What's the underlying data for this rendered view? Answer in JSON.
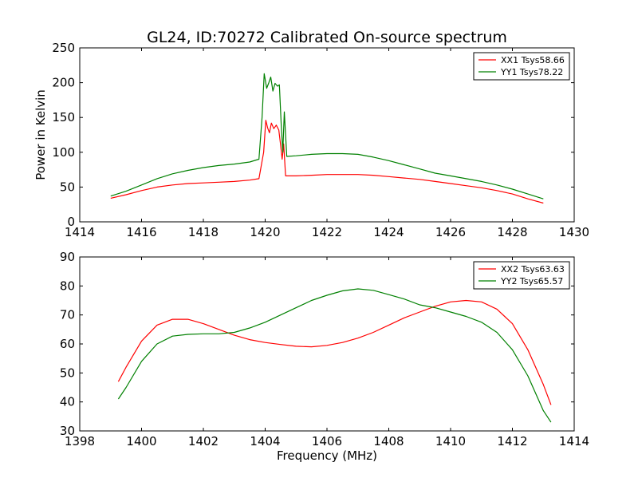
{
  "figure": {
    "title": "GL24, ID:70272 Calibrated On-source spectrum",
    "xlabel": "Frequency (MHz)",
    "ylabel": "Power in Kelvin"
  },
  "chart_data": [
    {
      "type": "line",
      "title": "GL24, ID:70272 Calibrated On-source spectrum",
      "xlabel": "",
      "ylabel": "Power in Kelvin",
      "xlim": [
        1414,
        1430
      ],
      "ylim": [
        0,
        250
      ],
      "xticks": [
        1414,
        1416,
        1418,
        1420,
        1422,
        1424,
        1426,
        1428,
        1430
      ],
      "yticks": [
        0,
        50,
        100,
        150,
        200,
        250
      ],
      "grid": false,
      "legend_position": "top-right",
      "series": [
        {
          "name": "XX1 Tsys58.66",
          "color": "#ff0000",
          "points": [
            [
              1415,
              34
            ],
            [
              1415.5,
              39
            ],
            [
              1416,
              45
            ],
            [
              1416.5,
              50
            ],
            [
              1417,
              53
            ],
            [
              1417.5,
              55
            ],
            [
              1418,
              56
            ],
            [
              1418.5,
              57
            ],
            [
              1419,
              58
            ],
            [
              1419.5,
              60
            ],
            [
              1419.8,
              62
            ],
            [
              1419.95,
              100
            ],
            [
              1420.02,
              146
            ],
            [
              1420.08,
              135
            ],
            [
              1420.14,
              128
            ],
            [
              1420.2,
              142
            ],
            [
              1420.28,
              134
            ],
            [
              1420.36,
              139
            ],
            [
              1420.44,
              132
            ],
            [
              1420.5,
              110
            ],
            [
              1420.55,
              90
            ],
            [
              1420.6,
              112
            ],
            [
              1420.66,
              66
            ],
            [
              1420.8,
              66
            ],
            [
              1421,
              66
            ],
            [
              1421.5,
              67
            ],
            [
              1422,
              68
            ],
            [
              1422.5,
              68
            ],
            [
              1423,
              68
            ],
            [
              1423.5,
              67
            ],
            [
              1424,
              65
            ],
            [
              1424.5,
              63
            ],
            [
              1425,
              61
            ],
            [
              1425.5,
              58
            ],
            [
              1426,
              55
            ],
            [
              1426.5,
              52
            ],
            [
              1427,
              49
            ],
            [
              1427.5,
              45
            ],
            [
              1428,
              40
            ],
            [
              1428.5,
              33
            ],
            [
              1429,
              27
            ]
          ]
        },
        {
          "name": "YY1 Tsys78.22",
          "color": "#008000",
          "points": [
            [
              1415,
              37
            ],
            [
              1415.5,
              44
            ],
            [
              1416,
              53
            ],
            [
              1416.5,
              62
            ],
            [
              1417,
              69
            ],
            [
              1417.5,
              74
            ],
            [
              1418,
              78
            ],
            [
              1418.5,
              81
            ],
            [
              1419,
              83
            ],
            [
              1419.5,
              86
            ],
            [
              1419.8,
              90
            ],
            [
              1419.9,
              150
            ],
            [
              1419.97,
              213
            ],
            [
              1420.05,
              192
            ],
            [
              1420.12,
              200
            ],
            [
              1420.18,
              208
            ],
            [
              1420.25,
              188
            ],
            [
              1420.32,
              199
            ],
            [
              1420.4,
              195
            ],
            [
              1420.46,
              197
            ],
            [
              1420.52,
              140
            ],
            [
              1420.57,
              100
            ],
            [
              1420.62,
              158
            ],
            [
              1420.7,
              94
            ],
            [
              1421,
              95
            ],
            [
              1421.5,
              97
            ],
            [
              1422,
              98
            ],
            [
              1422.5,
              98
            ],
            [
              1423,
              97
            ],
            [
              1423.5,
              93
            ],
            [
              1424,
              88
            ],
            [
              1424.5,
              82
            ],
            [
              1425,
              76
            ],
            [
              1425.5,
              70
            ],
            [
              1426,
              66
            ],
            [
              1426.5,
              62
            ],
            [
              1427,
              58
            ],
            [
              1427.5,
              53
            ],
            [
              1428,
              47
            ],
            [
              1428.5,
              40
            ],
            [
              1429,
              33
            ]
          ]
        }
      ]
    },
    {
      "type": "line",
      "title": "",
      "xlabel": "Frequency (MHz)",
      "ylabel": "",
      "xlim": [
        1398,
        1414
      ],
      "ylim": [
        30,
        90
      ],
      "xticks": [
        1398,
        1400,
        1402,
        1404,
        1406,
        1408,
        1410,
        1412,
        1414
      ],
      "yticks": [
        30,
        40,
        50,
        60,
        70,
        80,
        90
      ],
      "grid": false,
      "legend_position": "top-right",
      "series": [
        {
          "name": "XX2 Tsys63.63",
          "color": "#ff0000",
          "points": [
            [
              1399.25,
              47
            ],
            [
              1399.5,
              52
            ],
            [
              1400,
              61
            ],
            [
              1400.5,
              66.5
            ],
            [
              1401,
              68.5
            ],
            [
              1401.5,
              68.5
            ],
            [
              1402,
              67
            ],
            [
              1402.5,
              65
            ],
            [
              1403,
              63
            ],
            [
              1403.5,
              61.5
            ],
            [
              1404,
              60.5
            ],
            [
              1404.5,
              59.8
            ],
            [
              1405,
              59.2
            ],
            [
              1405.5,
              59
            ],
            [
              1406,
              59.5
            ],
            [
              1406.5,
              60.5
            ],
            [
              1407,
              62
            ],
            [
              1407.5,
              64
            ],
            [
              1408,
              66.5
            ],
            [
              1408.5,
              69
            ],
            [
              1409,
              71
            ],
            [
              1409.5,
              73
            ],
            [
              1410,
              74.5
            ],
            [
              1410.5,
              75
            ],
            [
              1411,
              74.5
            ],
            [
              1411.5,
              72
            ],
            [
              1412,
              67
            ],
            [
              1412.5,
              58
            ],
            [
              1413,
              46
            ],
            [
              1413.25,
              39
            ]
          ]
        },
        {
          "name": "YY2 Tsys65.57",
          "color": "#008000",
          "points": [
            [
              1399.25,
              41
            ],
            [
              1399.5,
              45
            ],
            [
              1400,
              54
            ],
            [
              1400.5,
              60
            ],
            [
              1401,
              62.7
            ],
            [
              1401.5,
              63.3
            ],
            [
              1402,
              63.5
            ],
            [
              1402.5,
              63.5
            ],
            [
              1403,
              64
            ],
            [
              1403.5,
              65.5
            ],
            [
              1404,
              67.5
            ],
            [
              1404.5,
              70
            ],
            [
              1405,
              72.5
            ],
            [
              1405.5,
              75
            ],
            [
              1406,
              76.8
            ],
            [
              1406.5,
              78.3
            ],
            [
              1407,
              79
            ],
            [
              1407.5,
              78.5
            ],
            [
              1408,
              77
            ],
            [
              1408.5,
              75.5
            ],
            [
              1409,
              73.5
            ],
            [
              1409.5,
              72.5
            ],
            [
              1410,
              71
            ],
            [
              1410.5,
              69.5
            ],
            [
              1411,
              67.5
            ],
            [
              1411.5,
              64
            ],
            [
              1412,
              58
            ],
            [
              1412.5,
              49
            ],
            [
              1413,
              37
            ],
            [
              1413.25,
              33
            ]
          ]
        }
      ]
    }
  ]
}
